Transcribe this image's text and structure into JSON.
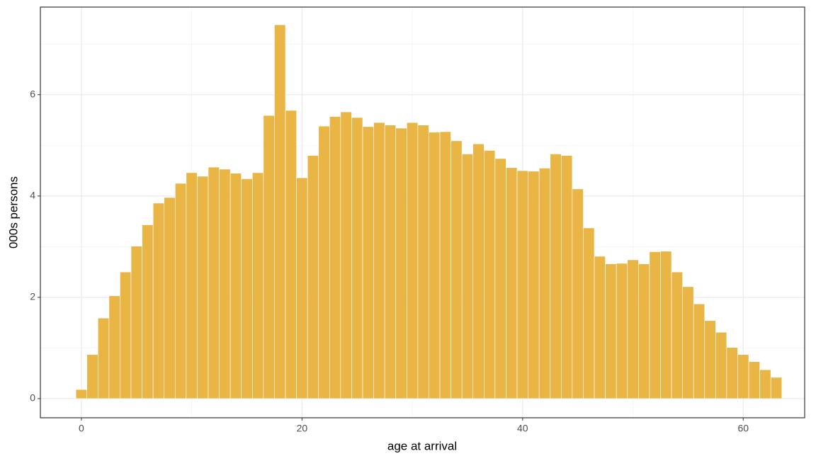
{
  "chart_data": {
    "type": "histogram",
    "xlabel": "age at arrival",
    "ylabel": "000s persons",
    "bins": [
      -0.5,
      0.5,
      1.5,
      2.5,
      3.5,
      4.5,
      5.5,
      6.5,
      7.5,
      8.5,
      9.5,
      10.5,
      11.5,
      12.5,
      13.5,
      14.5,
      15.5,
      16.5,
      17.5,
      18.5,
      19.5,
      20.5,
      21.5,
      22.5,
      23.5,
      24.5,
      25.5,
      26.5,
      27.5,
      28.5,
      29.5,
      30.5,
      31.5,
      32.5,
      33.5,
      34.5,
      35.5,
      36.5,
      37.5,
      38.5,
      39.5,
      40.5,
      41.5,
      42.5,
      43.5,
      44.5,
      45.5,
      46.5,
      47.5,
      48.5,
      49.5,
      50.5,
      51.5,
      52.5,
      53.5,
      54.5,
      55.5,
      56.5,
      57.5,
      58.5,
      59.5,
      60.5,
      61.5,
      62.5,
      63.5
    ],
    "values": [
      0.18,
      0.87,
      1.59,
      2.03,
      2.5,
      3.01,
      3.43,
      3.86,
      3.97,
      4.25,
      4.46,
      4.39,
      4.57,
      4.53,
      4.45,
      4.34,
      4.46,
      5.59,
      7.38,
      5.69,
      4.36,
      4.8,
      5.38,
      5.57,
      5.66,
      5.55,
      5.37,
      5.45,
      5.4,
      5.34,
      5.45,
      5.4,
      5.26,
      5.27,
      5.09,
      4.83,
      5.03,
      4.9,
      4.74,
      4.56,
      4.5,
      4.49,
      4.55,
      4.83,
      4.8,
      4.14,
      3.37,
      2.81,
      2.66,
      2.67,
      2.74,
      2.66,
      2.9,
      2.91,
      2.5,
      2.21,
      1.87,
      1.54,
      1.31,
      1.01,
      0.87,
      0.73,
      0.57,
      0.42
    ],
    "color": "#E8B23C",
    "xlim": [
      -3.72,
      65.57
    ],
    "ylim": [
      -0.378,
      7.73
    ],
    "xticks": [
      0,
      20,
      40,
      60
    ],
    "yticks": [
      0,
      2,
      4,
      6
    ],
    "xminorticks": [
      10,
      30,
      50
    ],
    "yminorticks": [
      1,
      3,
      5,
      7
    ],
    "grid": true
  }
}
